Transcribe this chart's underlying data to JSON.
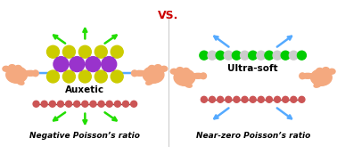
{
  "title": "VS.",
  "title_color": "#cc0000",
  "title_fontsize": 9,
  "bg_color": "#ffffff",
  "left_label": "Auxetic",
  "right_label": "Ultra-soft",
  "left_caption": "Negative Poisson’s ratio",
  "right_caption": "Near-zero Poisson’s ratio",
  "caption_fontstyle": "italic",
  "caption_fontsize": 6.5,
  "label_fontsize": 7.5,
  "arrow_color_green": "#22dd00",
  "arrow_color_blue": "#55aaff",
  "mol_purple": "#9933cc",
  "mol_yellow": "#cccc00",
  "mol_green": "#00cc00",
  "mol_grey": "#aaaaaa",
  "chain_line": "#8B3A3A",
  "chain_dot": "#cc5555",
  "skin_color": "#f4a97f",
  "skin_dark": "#d4845a"
}
